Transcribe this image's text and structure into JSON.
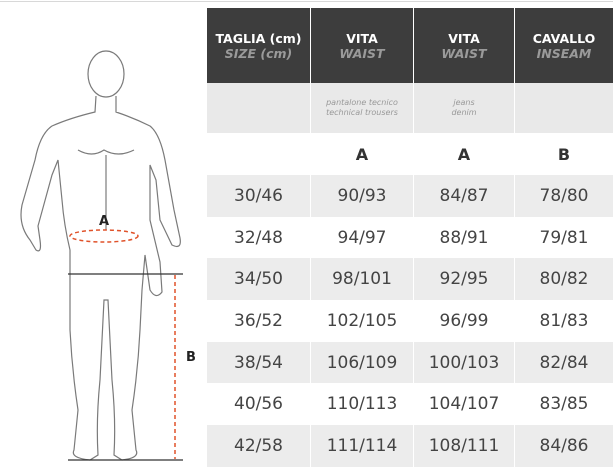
{
  "header": {
    "columns": [
      {
        "title": "TAGLIA (cm)",
        "subtitle": "SIZE (cm)"
      },
      {
        "title": "VITA",
        "subtitle": "WAIST",
        "note": [
          "pantalone tecnico",
          "technical trousers"
        ]
      },
      {
        "title": "VITA",
        "subtitle": "WAIST",
        "note": [
          "jeans",
          "denim"
        ]
      },
      {
        "title": "CAVALLO",
        "subtitle": "INSEAM"
      }
    ]
  },
  "letters": [
    null,
    "A",
    "A",
    "B"
  ],
  "figure": {
    "waist_label": "A",
    "inseam_label": "B"
  },
  "table": {
    "rows": [
      [
        "30/46",
        "90/93",
        "84/87",
        "78/80"
      ],
      [
        "32/48",
        "94/97",
        "88/91",
        "79/81"
      ],
      [
        "34/50",
        "98/101",
        "92/95",
        "80/82"
      ],
      [
        "36/52",
        "102/105",
        "96/99",
        "81/83"
      ],
      [
        "38/54",
        "106/109",
        "100/103",
        "82/84"
      ],
      [
        "40/56",
        "110/113",
        "104/107",
        "83/85"
      ],
      [
        "42/58",
        "111/114",
        "108/111",
        "84/86"
      ]
    ]
  }
}
